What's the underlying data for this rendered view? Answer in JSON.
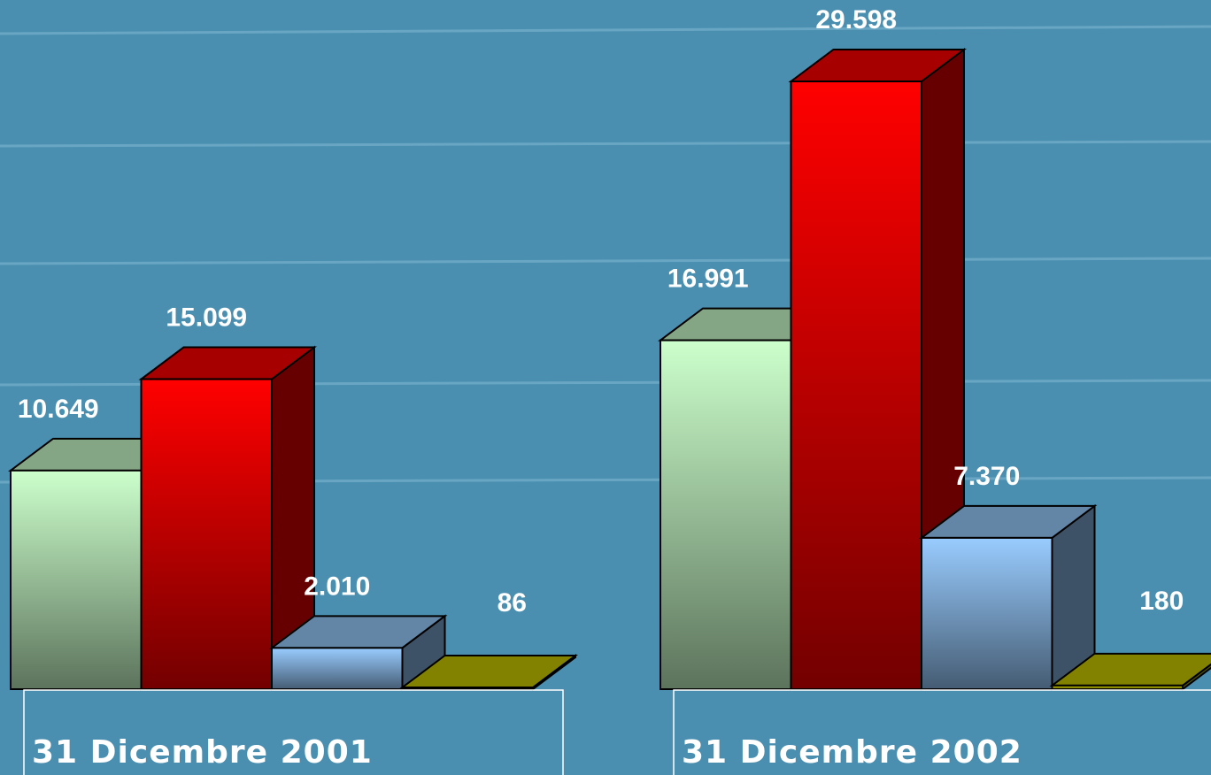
{
  "chart_data": {
    "type": "bar3d",
    "categories": [
      "31 Dicembre 2001",
      "31 Dicembre 2002"
    ],
    "series": [
      {
        "color": "#ccffcc",
        "values": [
          10649,
          16991
        ],
        "value_labels": [
          "10.649",
          "16.991"
        ]
      },
      {
        "color": "#ff0000",
        "values": [
          15099,
          29598
        ],
        "value_labels": [
          "15.099",
          "29.598"
        ]
      },
      {
        "color": "#99ccff",
        "values": [
          2010,
          7370
        ],
        "value_labels": [
          "2.010",
          "7.370"
        ]
      },
      {
        "color": "#c8c800",
        "values": [
          86,
          180
        ],
        "value_labels": [
          "86",
          "180"
        ]
      }
    ]
  }
}
